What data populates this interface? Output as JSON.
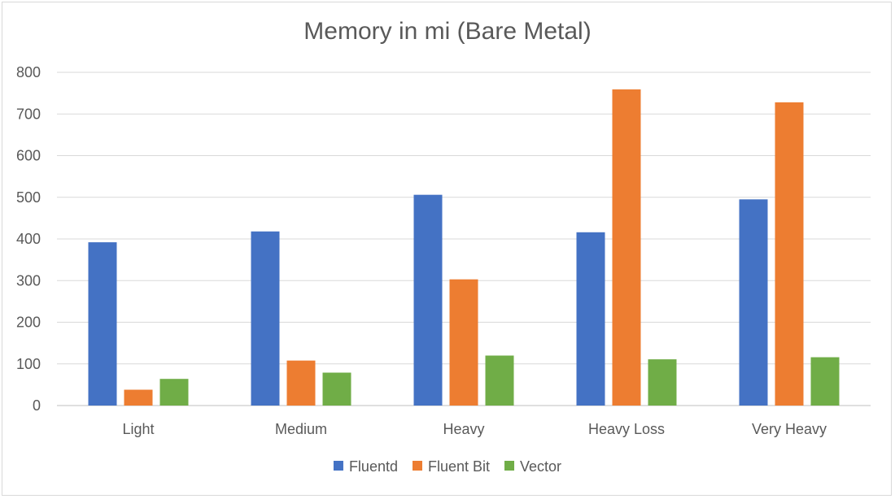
{
  "chart_data": {
    "type": "bar",
    "title": "Memory in mi (Bare Metal)",
    "xlabel": "",
    "ylabel": "",
    "categories": [
      "Light",
      "Medium",
      "Heavy",
      "Heavy Loss",
      "Very Heavy"
    ],
    "series": [
      {
        "name": "Fluentd",
        "color": "#4472c4",
        "values": [
          392,
          418,
          506,
          416,
          495
        ]
      },
      {
        "name": "Fluent Bit",
        "color": "#ed7d31",
        "values": [
          38,
          108,
          303,
          759,
          728
        ]
      },
      {
        "name": "Vector",
        "color": "#70ad47",
        "values": [
          64,
          79,
          120,
          111,
          116
        ]
      }
    ],
    "ylim": [
      0,
      800
    ],
    "yticks": [
      0,
      100,
      200,
      300,
      400,
      500,
      600,
      700,
      800
    ],
    "grid": true,
    "legend_position": "bottom"
  }
}
